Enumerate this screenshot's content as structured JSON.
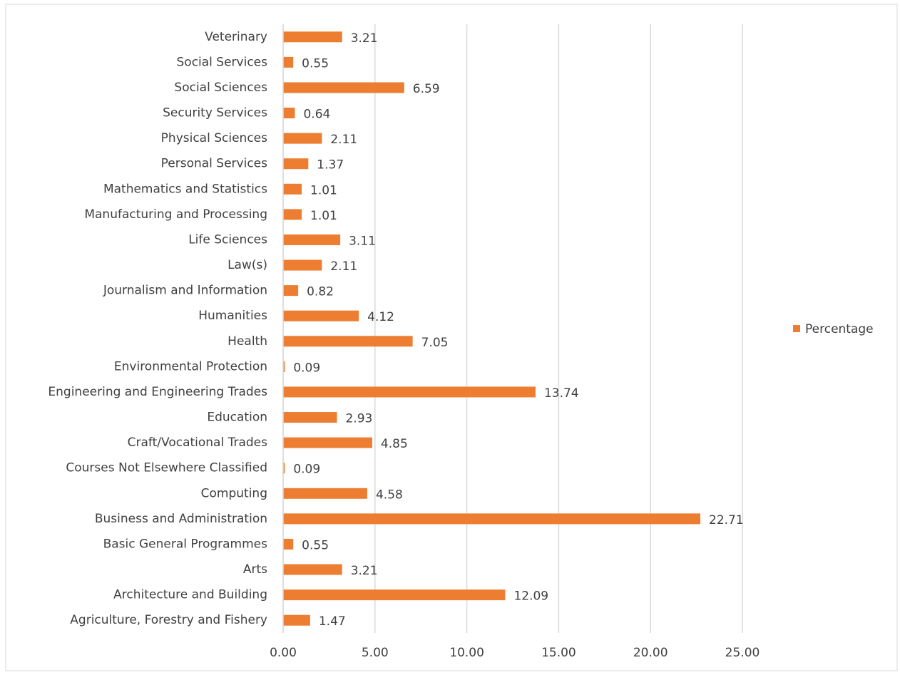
{
  "chart_data": {
    "type": "bar",
    "orientation": "horizontal",
    "categories": [
      "Agriculture, Forestry and Fishery",
      "Architecture and Building",
      "Arts",
      "Basic General Programmes",
      "Business and Administration",
      "Computing",
      "Courses Not Elsewhere Classified",
      "Craft/Vocational Trades",
      "Education",
      "Engineering and Engineering Trades",
      "Environmental Protection",
      "Health",
      "Humanities",
      "Journalism and Information",
      "Law(s)",
      "Life Sciences",
      "Manufacturing and Processing",
      "Mathematics and Statistics",
      "Personal Services",
      "Physical Sciences",
      "Security Services",
      "Social Sciences",
      "Social Services",
      "Veterinary"
    ],
    "series": [
      {
        "name": "Percentage",
        "color": "#ed7d31",
        "values": [
          1.47,
          12.09,
          3.21,
          0.55,
          22.71,
          4.58,
          0.09,
          4.85,
          2.93,
          13.74,
          0.09,
          7.05,
          4.12,
          0.82,
          2.11,
          3.11,
          1.01,
          1.01,
          1.37,
          2.11,
          0.64,
          6.59,
          0.55,
          3.21
        ]
      }
    ],
    "xlim": [
      0,
      25
    ],
    "xticks": [
      {
        "value": 0,
        "label": "0.00"
      },
      {
        "value": 5,
        "label": "5.00"
      },
      {
        "value": 10,
        "label": "10.00"
      },
      {
        "value": 15,
        "label": "15.00"
      },
      {
        "value": 20,
        "label": "20.00"
      },
      {
        "value": 25,
        "label": "25.00"
      }
    ],
    "grid": true,
    "legend": "right"
  }
}
